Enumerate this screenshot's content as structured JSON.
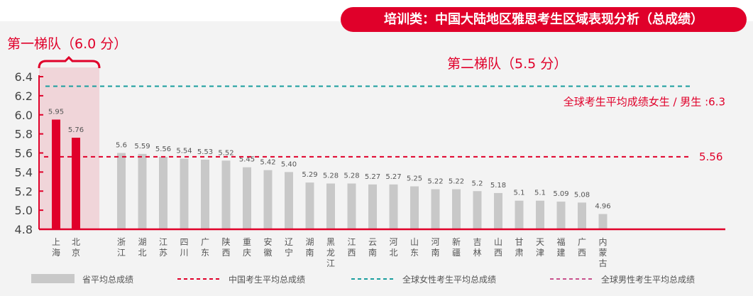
{
  "title": "培训类：中国大陆地区雅思考生区域表现分析（总成绩）",
  "chart_data": {
    "type": "bar",
    "title": "培训类：中国大陆地区雅思考生区域表现分析（总成绩）",
    "ylim": [
      4.8,
      6.4
    ],
    "yticks": [
      "4.8",
      "5.0",
      "5.2",
      "5.4",
      "5.6",
      "5.8",
      "6.0",
      "6.2",
      "6.4"
    ],
    "categories": [
      "上海",
      "北京",
      "浙江",
      "湖北",
      "江苏",
      "四川",
      "广东",
      "陕西",
      "重庆",
      "安徽",
      "辽宁",
      "湖南",
      "黑龙江",
      "江西",
      "云南",
      "河北",
      "山东",
      "河南",
      "新疆",
      "吉林",
      "山西",
      "甘肃",
      "天津",
      "福建",
      "广西",
      "内蒙古"
    ],
    "values": [
      5.95,
      5.76,
      5.6,
      5.59,
      5.56,
      5.54,
      5.53,
      5.52,
      5.45,
      5.42,
      5.4,
      5.29,
      5.28,
      5.28,
      5.27,
      5.27,
      5.25,
      5.22,
      5.22,
      5.2,
      5.18,
      5.1,
      5.1,
      5.09,
      5.08,
      4.96
    ],
    "value_labels": [
      "5.95",
      "5.76",
      "5.6",
      "5.59",
      "5.56",
      "5.54",
      "5.53",
      "5.52",
      "5.45",
      "5.42",
      "5.40",
      "5.29",
      "5.28",
      "5.28",
      "5.27",
      "5.27",
      "5.25",
      "5.22",
      "5.22",
      "5.2",
      "5.18",
      "5.1",
      "5.1",
      "5.09",
      "5.08",
      "4.96"
    ],
    "tier1": {
      "label": "第一梯队（6.0 分）",
      "count": 2
    },
    "tier2": {
      "label": "第二梯队（5.5 分）"
    },
    "reference_lines": [
      {
        "name": "中国考生平均总成绩",
        "value": 5.56,
        "label": "5.56",
        "color": "#e0002a"
      },
      {
        "name": "全球女性考生平均总成绩",
        "value": 6.3,
        "label": "全球考生平均成绩女生 / 男生 :6.3",
        "color": "#1a9e9e"
      }
    ],
    "legend": [
      {
        "label": "省平均总成绩",
        "color": "#c8c8c8",
        "kind": "box"
      },
      {
        "label": "中国考生平均总成绩",
        "color": "#e0002a",
        "kind": "dash"
      },
      {
        "label": "全球女性考生平均总成绩",
        "color": "#1a9e9e",
        "kind": "dash"
      },
      {
        "label": "全球男性考生平均总成绩",
        "color": "#c8508c",
        "kind": "dash"
      }
    ],
    "colors": {
      "highlight": "#e0002a",
      "bar": "#c8c8c8",
      "axis": "#e0002a"
    }
  }
}
